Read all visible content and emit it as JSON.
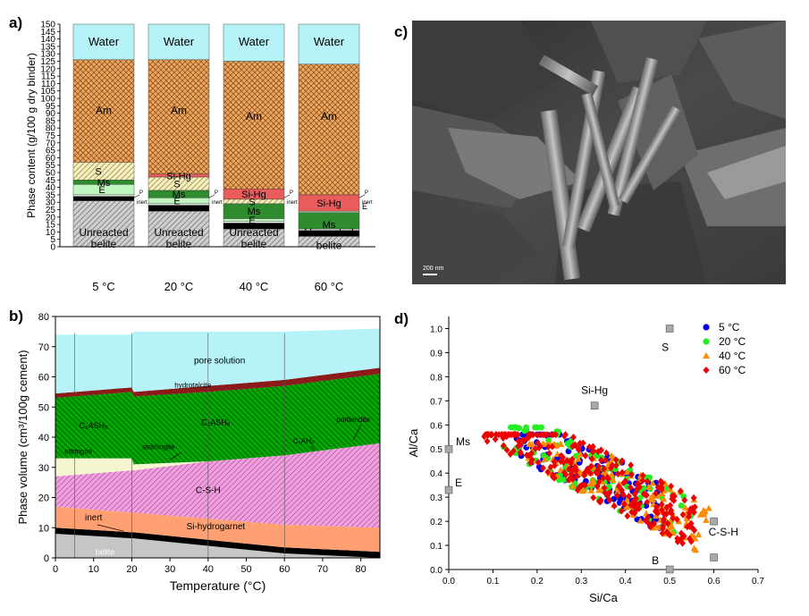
{
  "panel_letters": {
    "a": "a)",
    "b": "b)",
    "c": "c)",
    "d": "d)"
  },
  "sem_scale_text": "200 nm",
  "chart_data": [
    {
      "type": "bar",
      "stacked": true,
      "ylabel": "Phase content (g/100 g dry binder)",
      "ylim": [
        0,
        150
      ],
      "yticks": [
        0,
        5,
        10,
        15,
        20,
        25,
        30,
        35,
        40,
        45,
        50,
        55,
        60,
        65,
        70,
        75,
        80,
        85,
        90,
        95,
        100,
        105,
        110,
        115,
        120,
        125,
        130,
        135,
        140,
        145,
        150
      ],
      "categories": [
        "5 °C",
        "20 °C",
        "40 °C",
        "60 °C"
      ],
      "colors": {
        "Unreacted belite": "#c8c8c8",
        "inert": "#000000",
        "P": "#ffffff",
        "E": "#bff5bf",
        "Ms": "#2e8b2e",
        "S": "#f5eec0",
        "Si-Hg": "#e85c5c",
        "Am": "#f0a55a",
        "Water": "#b5f3f8"
      },
      "stacks": [
        {
          "category": "5 °C",
          "layers": [
            {
              "name": "Unreacted belite",
              "from": 0,
              "to": 31
            },
            {
              "name": "inert",
              "from": 31,
              "to": 34
            },
            {
              "name": "P",
              "from": 34,
              "to": 35
            },
            {
              "name": "E",
              "from": 35,
              "to": 42
            },
            {
              "name": "Ms",
              "from": 42,
              "to": 45
            },
            {
              "name": "S",
              "from": 45,
              "to": 57
            },
            {
              "name": "Am",
              "from": 57,
              "to": 126
            },
            {
              "name": "Water",
              "from": 126,
              "to": 150
            }
          ]
        },
        {
          "category": "20 °C",
          "layers": [
            {
              "name": "Unreacted belite",
              "from": 0,
              "to": 24
            },
            {
              "name": "inert",
              "from": 24,
              "to": 28
            },
            {
              "name": "P",
              "from": 28,
              "to": 29
            },
            {
              "name": "E",
              "from": 29,
              "to": 33
            },
            {
              "name": "Ms",
              "from": 33,
              "to": 38
            },
            {
              "name": "S",
              "from": 38,
              "to": 47
            },
            {
              "name": "Si-Hg",
              "from": 47,
              "to": 49
            },
            {
              "name": "Am",
              "from": 49,
              "to": 126
            },
            {
              "name": "Water",
              "from": 126,
              "to": 150
            }
          ]
        },
        {
          "category": "40 °C",
          "layers": [
            {
              "name": "Unreacted belite",
              "from": 0,
              "to": 12
            },
            {
              "name": "inert",
              "from": 12,
              "to": 16
            },
            {
              "name": "P",
              "from": 16,
              "to": 17
            },
            {
              "name": "E",
              "from": 17,
              "to": 19
            },
            {
              "name": "Ms",
              "from": 19,
              "to": 29
            },
            {
              "name": "S",
              "from": 29,
              "to": 32
            },
            {
              "name": "Si-Hg",
              "from": 32,
              "to": 39
            },
            {
              "name": "Am",
              "from": 39,
              "to": 125
            },
            {
              "name": "Water",
              "from": 125,
              "to": 150
            }
          ]
        },
        {
          "category": "60 °C",
          "layers": [
            {
              "name": "Unreacted belite",
              "from": 0,
              "to": 7
            },
            {
              "name": "inert",
              "from": 7,
              "to": 11
            },
            {
              "name": "P",
              "from": 11,
              "to": 12
            },
            {
              "name": "Ms",
              "from": 12,
              "to": 23
            },
            {
              "name": "E",
              "from": 23,
              "to": 24
            },
            {
              "name": "Si-Hg",
              "from": 24,
              "to": 35
            },
            {
              "name": "Am",
              "from": 35,
              "to": 123
            },
            {
              "name": "Water",
              "from": 123,
              "to": 150
            }
          ]
        }
      ],
      "labels": {
        "water": "Water",
        "am": "Am",
        "s": "S",
        "ms": "Ms",
        "e": "E",
        "sihg": "Si-Hg",
        "p": "P",
        "inert": "inert",
        "belite1": "Unreacted",
        "belite2": "belite"
      }
    },
    {
      "type": "area",
      "stacked": true,
      "xlabel": "Temperature (°C)",
      "ylabel": "Phase volume (cm³/100g cement)",
      "xlim": [
        0,
        85
      ],
      "ylim": [
        0,
        80
      ],
      "xticks": [
        0,
        10,
        20,
        30,
        40,
        50,
        60,
        70,
        80
      ],
      "yticks": [
        0,
        10,
        20,
        30,
        40,
        50,
        60,
        70,
        80
      ],
      "vlines": [
        5,
        20,
        40,
        60
      ],
      "x": [
        0,
        20,
        20.5,
        40,
        60,
        85
      ],
      "layers": [
        {
          "name": "belite",
          "color": "#c6c6c6",
          "top": [
            8,
            6.5,
            6.5,
            4,
            1.5,
            0
          ]
        },
        {
          "name": "inert",
          "color": "#000000",
          "top": [
            10,
            8.5,
            8.5,
            6,
            3.5,
            2
          ]
        },
        {
          "name": "Si-hydrogarnet",
          "color": "#ffa072",
          "top": [
            17,
            15,
            15,
            13,
            11,
            10
          ]
        },
        {
          "name": "C-S-H",
          "color": "#f2a0e0",
          "top": [
            27,
            29,
            29,
            32,
            34,
            38
          ]
        },
        {
          "name": "ettringite",
          "color": "#f5f5d0",
          "top": [
            33,
            33,
            31,
            32,
            34,
            38
          ]
        },
        {
          "name": "stratlingite / C2ASH8",
          "color": "#00aa00",
          "top": [
            53,
            55,
            53.5,
            55,
            57,
            61
          ]
        },
        {
          "name": "hydrotalcite",
          "color": "#8b1a1a",
          "top": [
            54.5,
            56.5,
            55,
            57,
            59,
            63
          ]
        },
        {
          "name": "pore solution",
          "color": "#b5f3f8",
          "top": [
            74,
            74,
            75,
            75,
            75,
            76
          ]
        }
      ],
      "labels": {
        "pore_solution": "pore solution",
        "hydrotalcite": "hydrotalcite",
        "c2ash8_left": "C₂ASH₈",
        "c2ash8_mid": "C₂ASH₈",
        "c3ah6": "C₃AH₆",
        "portlandite": "portlandite",
        "stratlingite": "strätlingite",
        "ettringite": "ettringite",
        "csh": "C-S-H",
        "inert": "inert",
        "sihg": "Si-hydrogarnet",
        "belite": "belite"
      }
    },
    {
      "type": "scatter",
      "xlabel": "Si/Ca",
      "ylabel": "Al/Ca",
      "xlim": [
        0,
        0.7
      ],
      "ylim": [
        0,
        1.05
      ],
      "xticks": [
        0.0,
        0.1,
        0.2,
        0.3,
        0.4,
        0.5,
        0.6,
        0.7
      ],
      "yticks": [
        0.0,
        0.1,
        0.2,
        0.3,
        0.4,
        0.5,
        0.6,
        0.7,
        0.8,
        0.9,
        1.0
      ],
      "legend_position": "top-right",
      "series": [
        {
          "name": "5 °C",
          "color": "#0000ee",
          "marker": "circle",
          "x_range": [
            0.15,
            0.48
          ],
          "y_range": [
            0.12,
            0.56
          ],
          "center": [
            0.32,
            0.42
          ],
          "count": 110,
          "seed": 11
        },
        {
          "name": "20 °C",
          "color": "#22ee22",
          "marker": "circle",
          "x_range": [
            0.12,
            0.55
          ],
          "y_range": [
            0.06,
            0.59
          ],
          "center": [
            0.3,
            0.44
          ],
          "count": 120,
          "seed": 23
        },
        {
          "name": "40 °C",
          "color": "#ff8c00",
          "marker": "triangle",
          "x_range": [
            0.18,
            0.59
          ],
          "y_range": [
            0.08,
            0.52
          ],
          "center": [
            0.4,
            0.33
          ],
          "count": 130,
          "seed": 37
        },
        {
          "name": "60 °C",
          "color": "#ee0000",
          "marker": "diamond",
          "x_range": [
            0.08,
            0.56
          ],
          "y_range": [
            0.01,
            0.56
          ],
          "center": [
            0.36,
            0.35
          ],
          "count": 260,
          "seed": 53
        }
      ],
      "references": [
        {
          "label": "S",
          "x": 0.5,
          "y": 1.0
        },
        {
          "label": "Si-Hg",
          "x": 0.33,
          "y": 0.68
        },
        {
          "label": "Ms",
          "x": 0.0,
          "y": 0.5
        },
        {
          "label": "E",
          "x": 0.0,
          "y": 0.33
        },
        {
          "label": "C-S-H",
          "x": 0.6,
          "y": 0.2
        },
        {
          "label": "",
          "x": 0.6,
          "y": 0.05
        },
        {
          "label": "B",
          "x": 0.5,
          "y": 0.0
        }
      ]
    }
  ]
}
